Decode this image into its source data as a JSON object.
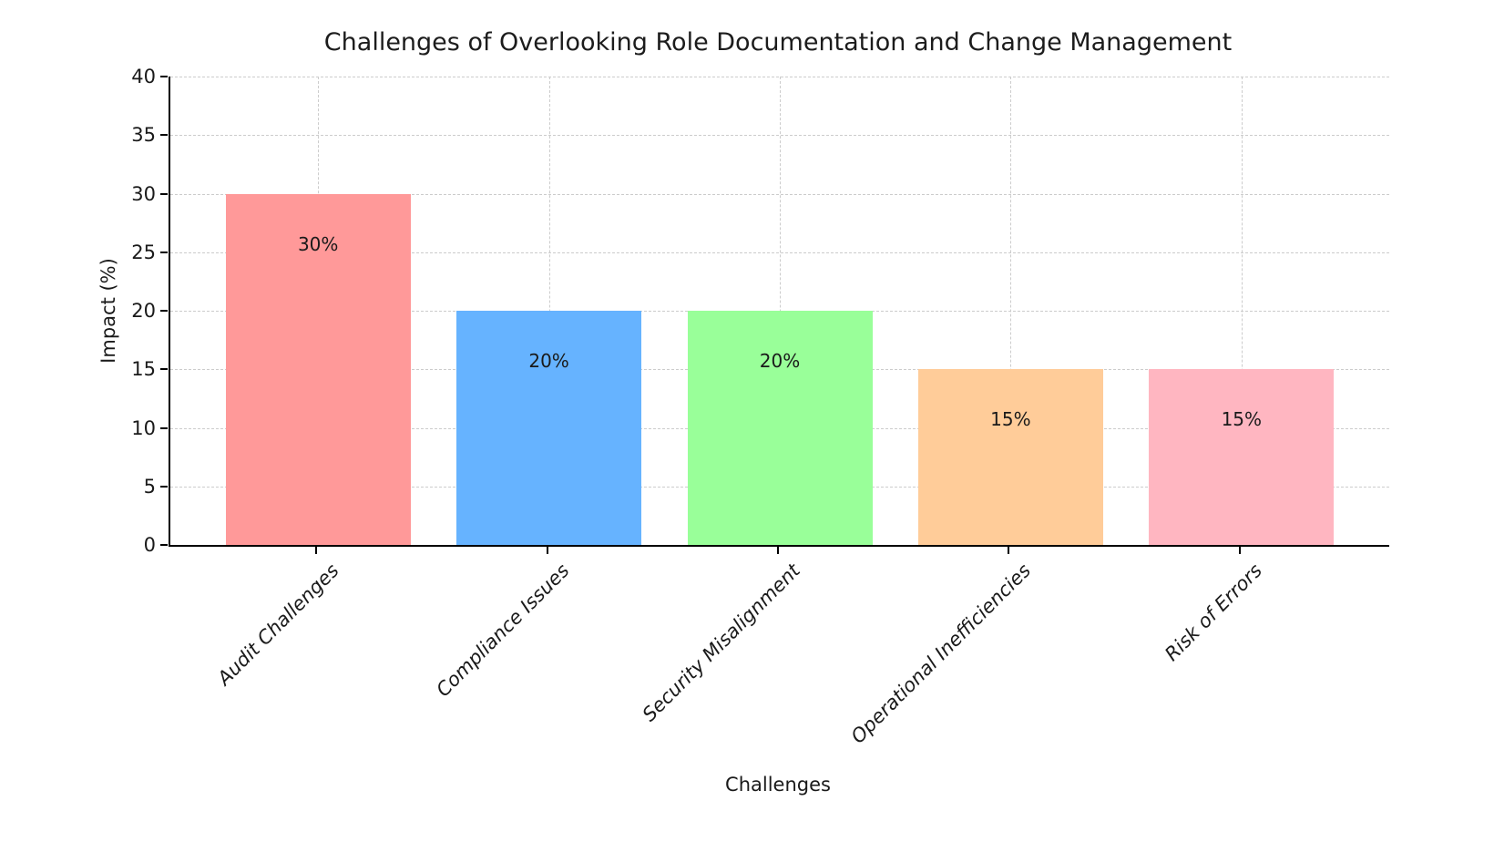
{
  "chart_data": {
    "type": "bar",
    "title": "Challenges of Overlooking Role Documentation and Change Management",
    "xlabel": "Challenges",
    "ylabel": "Impact (%)",
    "categories": [
      "Audit Challenges",
      "Compliance Issues",
      "Security Misalignment",
      "Operational Inefficiencies",
      "Risk of Errors"
    ],
    "values": [
      30,
      20,
      20,
      15,
      15
    ],
    "bar_labels": [
      "30%",
      "20%",
      "20%",
      "15%",
      "15%"
    ],
    "bar_colors": [
      "#ff9999",
      "#66b3ff",
      "#99ff99",
      "#ffcc99",
      "#ffb6c1"
    ],
    "ylim": [
      0,
      40
    ],
    "yticks": [
      0,
      5,
      10,
      15,
      20,
      25,
      30,
      35,
      40
    ],
    "grid": "dashed horizontal and vertical",
    "grid_color": "#cccccc",
    "spine_color": "#000000",
    "text_color": "#1a1a1a",
    "legend": "none",
    "xtick_style": "italic, rotated 45 degrees"
  }
}
